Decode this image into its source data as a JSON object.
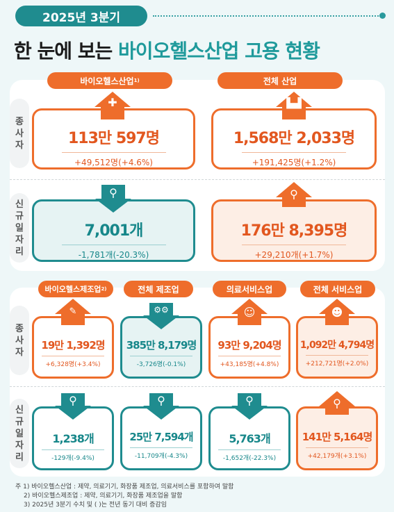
{
  "header": {
    "quarter": "2025년 3분기",
    "title_prefix": "한 눈에 보는 ",
    "title_accent": "바이오헬스산업 고용 현황"
  },
  "row_labels": {
    "employees": "종\n사\n자",
    "new_jobs": "신\n규\n일\n자\n리"
  },
  "top": {
    "bio_label": "바이오헬스산업",
    "bio_sup": "1)",
    "all_label": "전체 산업",
    "bio_employees": {
      "value": "113만 597명",
      "change": "+49,512명(+4.6%)"
    },
    "all_employees": {
      "value": "1,568만 2,033명",
      "change": "+191,425명(+1.2%)"
    },
    "bio_jobs": {
      "value": "7,001개",
      "change": "-1,781개(-20.3%)"
    },
    "all_jobs": {
      "value": "176만 8,395명",
      "change": "+29,210개(+1.7%)"
    }
  },
  "bottom": {
    "labels": [
      "바이오헬스제조업",
      "전체 제조업",
      "의료서비스업",
      "전체 서비스업"
    ],
    "label_sup": "2)",
    "employees": [
      {
        "value": "19만 1,392명",
        "change": "+6,328명(+3.4%)"
      },
      {
        "value": "385만 8,179명",
        "change": "-3,726명(-0.1%)"
      },
      {
        "value": "93만 9,204명",
        "change": "+43,185명(+4.8%)"
      },
      {
        "value": "1,092만 4,794명",
        "change": "+212,721명(+2.0%)"
      }
    ],
    "jobs": [
      {
        "value": "1,238개",
        "change": "-129개(-9.4%)"
      },
      {
        "value": "25만 7,594개",
        "change": "-11,709개(-4.3%)"
      },
      {
        "value": "5,763개",
        "change": "-1,652개(-22.3%)"
      },
      {
        "value": "141만 5,164명",
        "change": "+42,179개(+3.1%)"
      }
    ]
  },
  "notes": [
    "주 1) 바이오헬스산업 : 제약, 의료기기, 화장품 제조업, 의료서비스를 포함하여 말함",
    "2) 바이오헬스제조업 : 제약, 의료기기, 화장품 제조업을 말함",
    "3) 2025년 3분기 수치 및 ( )는 전년 동기 대비 증감임"
  ],
  "icons": [
    "medical-kit-icon",
    "factory-icon",
    "people-magnifier-icon",
    "pills-syringe-icon",
    "conveyor-icon",
    "nurse-icon",
    "worker-icon"
  ],
  "colors": {
    "orange": "#ee6d2b",
    "teal": "#1f8c8f"
  }
}
